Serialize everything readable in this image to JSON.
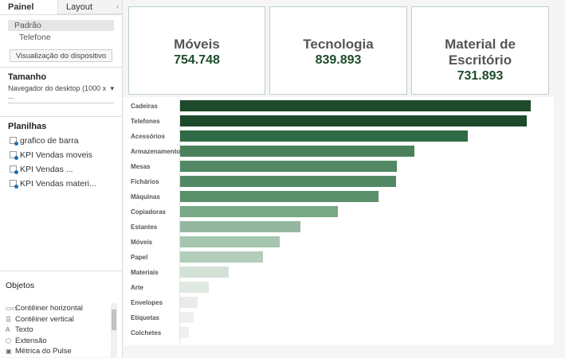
{
  "sidebar": {
    "tabs": [
      {
        "label": "Painel"
      },
      {
        "label": "Layout"
      }
    ],
    "collapse_icon": "chevron-left-icon",
    "devices": [
      "Padrão",
      "Telefone"
    ],
    "device_preview_label": "Visualização do dispositivo",
    "size_heading": "Tamanho",
    "size_value": "Navegador do desktop (1000 x ...",
    "sheets_heading": "Planilhas",
    "sheets": [
      "grafico de barra",
      "KPI Vendas moveis",
      "KPI Vendas ...",
      "KPI Vendas materi..."
    ],
    "objects_heading": "Objetos",
    "objects": [
      {
        "label": "Contêiner horizontal",
        "icon": "horizontal-container-icon",
        "glyph": "▭▭"
      },
      {
        "label": "Contêiner vertical",
        "icon": "vertical-container-icon",
        "glyph": "☰"
      },
      {
        "label": "Texto",
        "icon": "text-icon",
        "glyph": "A"
      },
      {
        "label": "Extensão",
        "icon": "extension-icon",
        "glyph": "⬡"
      },
      {
        "label": "Métrica do Pulse",
        "icon": "pulse-metric-icon",
        "glyph": "▣"
      }
    ]
  },
  "kpis": [
    {
      "title": "Móveis",
      "value": "754.748"
    },
    {
      "title": "Tecnologia",
      "value": "839.893"
    },
    {
      "title": "Material de Escritório",
      "value": "731.893"
    }
  ],
  "chart_data": {
    "type": "bar",
    "orientation": "horizontal",
    "note_units": "relative bar length (no axis shown)",
    "categories": [
      "Cadeiras",
      "Telefones",
      "Acessórios",
      "Armazenamento",
      "Mesas",
      "Fichários",
      "Máquinas",
      "Copiadoras",
      "Estantes",
      "Móveis",
      "Papel",
      "Materiais",
      "Arte",
      "Envelopes",
      "Etiquetas",
      "Colchetes"
    ],
    "values": [
      440,
      435,
      361,
      294,
      272,
      271,
      249,
      198,
      151,
      125,
      104,
      61,
      36,
      22,
      17,
      11
    ],
    "colors": [
      "#1d4a2a",
      "#1d4a2a",
      "#2f6b44",
      "#4a815b",
      "#528964",
      "#528964",
      "#5b906b",
      "#78a886",
      "#94b89f",
      "#a6c6af",
      "#b2cdb9",
      "#d3e2d7",
      "#e0e8e2",
      "#ebebeb",
      "#efefef",
      "#f0f0f0"
    ]
  }
}
